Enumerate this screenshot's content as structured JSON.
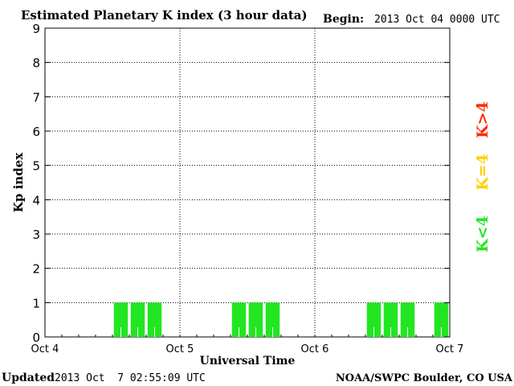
{
  "header": {
    "title": "Estimated Planetary K index (3 hour data)",
    "begin_label": "Begin:",
    "begin_value": "2013 Oct 04 0000 UTC"
  },
  "footer": {
    "updated_label": "Updated",
    "updated_value": "2013 Oct  7 02:55:09 UTC",
    "credit": "NOAA/SWPC Boulder, CO USA"
  },
  "legend": {
    "items": [
      {
        "label": "K>4",
        "color": "#ff2a00"
      },
      {
        "label": "K=4",
        "color": "#ffd000"
      },
      {
        "label": "K<4",
        "color": "#22e622"
      }
    ]
  },
  "chart_data": {
    "type": "bar",
    "title": "Estimated Planetary K index (3 hour data)",
    "xlabel": "Universal Time",
    "ylabel": "Kp index",
    "ylim": [
      0,
      9
    ],
    "xlim_hours": [
      0,
      72
    ],
    "x_ticks": [
      {
        "label": "Oct 4",
        "hour": 0
      },
      {
        "label": "Oct 5",
        "hour": 24
      },
      {
        "label": "Oct 6",
        "hour": 48
      },
      {
        "label": "Oct 7",
        "hour": 72
      }
    ],
    "y_ticks": [
      0,
      1,
      2,
      3,
      4,
      5,
      6,
      7,
      8,
      9
    ],
    "grid": true,
    "bar_width_hours": 3,
    "bar_color": "#22e622",
    "bars": [
      {
        "start_hour": 12,
        "value": 1
      },
      {
        "start_hour": 15,
        "value": 1
      },
      {
        "start_hour": 18,
        "value": 1
      },
      {
        "start_hour": 33,
        "value": 1
      },
      {
        "start_hour": 36,
        "value": 1
      },
      {
        "start_hour": 39,
        "value": 1
      },
      {
        "start_hour": 57,
        "value": 1
      },
      {
        "start_hour": 60,
        "value": 1
      },
      {
        "start_hour": 63,
        "value": 1
      },
      {
        "start_hour": 69,
        "value": 1
      }
    ]
  }
}
